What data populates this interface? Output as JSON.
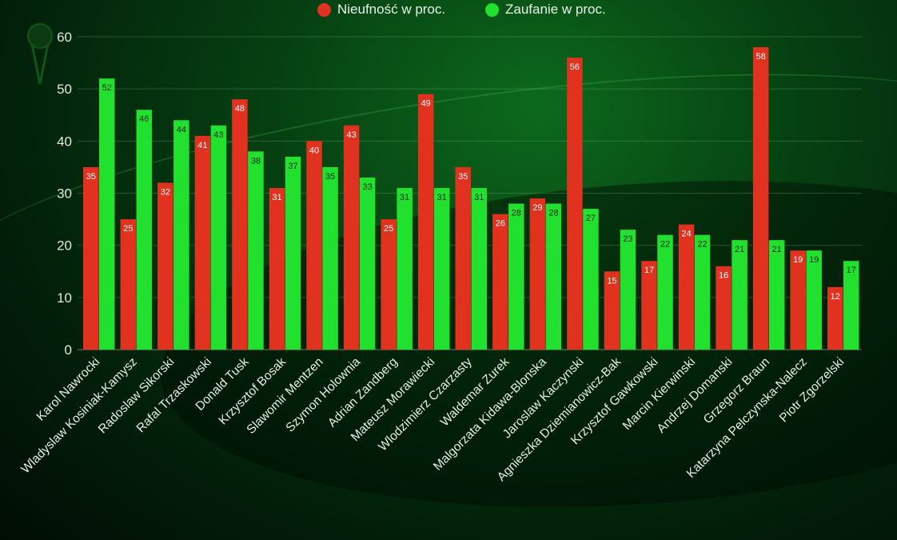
{
  "chart_data": {
    "type": "bar",
    "title": "",
    "xlabel": "",
    "ylabel": "",
    "ylim": [
      0,
      60
    ],
    "yticks": [
      0,
      10,
      20,
      30,
      40,
      50,
      60
    ],
    "grid": true,
    "legend_position": "top",
    "categories": [
      "Karol Nawrocki",
      "Wladyslaw Kosiniak-Kamysz",
      "Radoslaw Sikorski",
      "Rafal Trzaskowski",
      "Donald Tusk",
      "Krzysztof Bosak",
      "Slawomir Mentzen",
      "Szymon Holownia",
      "Adrian Zandberg",
      "Mateusz Morawiecki",
      "Wlodzimierz Czarzasty",
      "Waldemar Zurek",
      "Malgorzata Kidawa-Blonska",
      "Jaroslaw Kaczynski",
      "Agnieszka Dziemianowicz-Bak",
      "Krzysztof Gawkowski",
      "Marcin Kierwinski",
      "Andrzej Domanski",
      "Grzegorz Braun",
      "Katarzyna Pelczynska-Nalecz",
      "Piotr Zgorzelski"
    ],
    "series": [
      {
        "name": "Nieufność w proc.",
        "color": "#e0321e",
        "values": [
          35,
          25,
          32,
          41,
          48,
          31,
          40,
          43,
          25,
          49,
          35,
          26,
          29,
          56,
          15,
          17,
          24,
          16,
          58,
          19,
          12
        ]
      },
      {
        "name": "Zaufanie w proc.",
        "color": "#22e02e",
        "values": [
          52,
          46,
          44,
          43,
          38,
          37,
          35,
          33,
          31,
          31,
          31,
          28,
          28,
          27,
          23,
          22,
          22,
          21,
          21,
          19,
          17
        ]
      }
    ]
  },
  "decor": {
    "icon": "map-pin-icon"
  }
}
